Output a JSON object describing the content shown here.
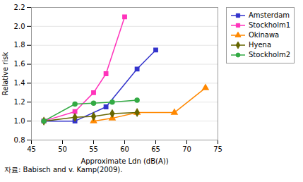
{
  "chart_data": {
    "type": "line",
    "xlabel": "Approximate Ldn (dB(A))",
    "ylabel": "Relative risk",
    "footnote": "자료: Babisch and v. Kamp(2009).",
    "xlim": [
      45,
      75
    ],
    "ylim": [
      0.8,
      2.2
    ],
    "xticks": [
      45,
      50,
      55,
      60,
      65,
      70,
      75
    ],
    "yticks": [
      0.8,
      {
        "value": 1.0,
        "label": "1.0"
      },
      1.2,
      1.4,
      1.6,
      1.8,
      {
        "value": 2.0,
        "label": "2.0"
      },
      2.2
    ],
    "grid": "y",
    "legend": "right",
    "series": [
      {
        "name": "Amsterdam",
        "color": "#3333CC",
        "marker": "square",
        "x": [
          47,
          52,
          57,
          62,
          65
        ],
        "values": [
          1.0,
          1.0,
          1.15,
          1.55,
          1.75
        ]
      },
      {
        "name": "Stockholm1",
        "color": "#FF33BB",
        "marker": "square",
        "x": [
          47,
          52,
          55,
          57,
          60
        ],
        "values": [
          1.0,
          1.1,
          1.3,
          1.5,
          2.1
        ]
      },
      {
        "name": "Okinawa",
        "color": "#FF8800",
        "marker": "triangle",
        "x": [
          55,
          58,
          62,
          68,
          73
        ],
        "values": [
          1.0,
          1.03,
          1.09,
          1.09,
          1.35
        ]
      },
      {
        "name": "Hyena",
        "color": "#666600",
        "marker": "diamond",
        "x": [
          47,
          52,
          55,
          58,
          62
        ],
        "values": [
          1.0,
          1.04,
          1.05,
          1.08,
          1.09
        ]
      },
      {
        "name": "Stockholm2",
        "color": "#33AA44",
        "marker": "circle",
        "x": [
          47,
          52,
          55,
          58,
          62
        ],
        "values": [
          1.0,
          1.18,
          1.19,
          1.2,
          1.22
        ]
      }
    ]
  }
}
